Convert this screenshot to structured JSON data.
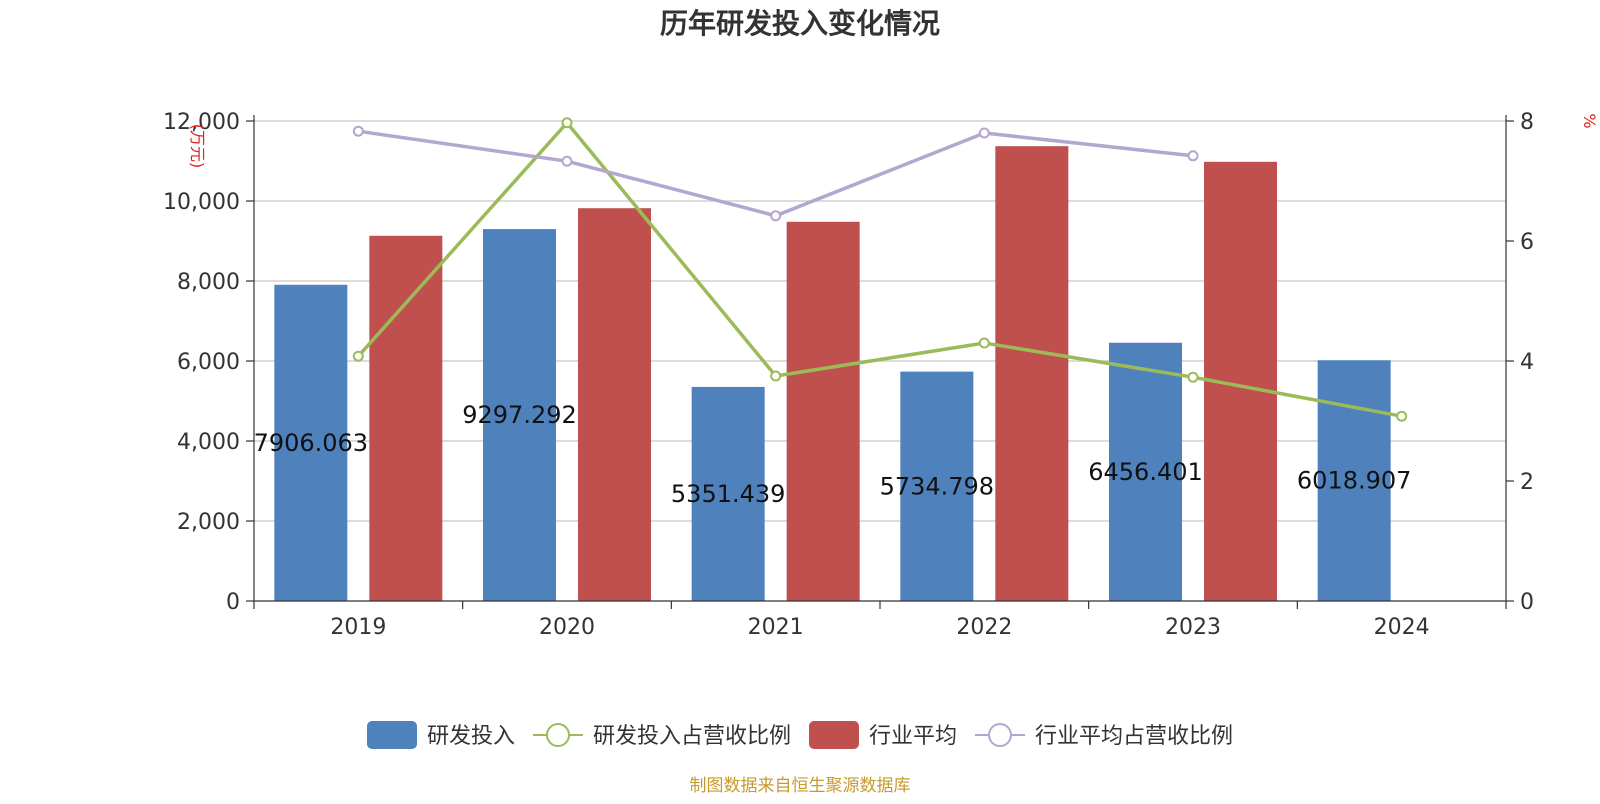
{
  "chart_data": {
    "type": "bar",
    "title": "历年研发投入变化情况",
    "categories": [
      "2019",
      "2020",
      "2021",
      "2022",
      "2023",
      "2024"
    ],
    "y_left": {
      "label": "(万元)",
      "range": [
        0,
        12000
      ],
      "ticks": [
        "0",
        "2,000",
        "4,000",
        "6,000",
        "8,000",
        "10,000",
        "12,000"
      ],
      "tick_values": [
        0,
        2000,
        4000,
        6000,
        8000,
        10000,
        12000
      ]
    },
    "y_right": {
      "label": "%",
      "range": [
        0,
        8
      ],
      "ticks": [
        "0",
        "2",
        "4",
        "6",
        "8"
      ],
      "tick_values": [
        0,
        2,
        4,
        6,
        8
      ]
    },
    "grid": true,
    "legend_position": "bottom",
    "series": [
      {
        "name": "研发投入",
        "kind": "bar",
        "axis": "left",
        "color": "#4f81bd",
        "values": [
          7906.063,
          9297.292,
          5351.439,
          5734.798,
          6456.401,
          6018.907
        ],
        "labels": [
          "7906.063",
          "9297.292",
          "5351.439",
          "5734.798",
          "6456.401",
          "6018.907"
        ]
      },
      {
        "name": "研发投入占营收比例",
        "kind": "line",
        "axis": "right",
        "color": "#9bbb59",
        "values": [
          4.08,
          7.97,
          3.75,
          4.3,
          3.73,
          3.08
        ]
      },
      {
        "name": "行业平均",
        "kind": "bar",
        "axis": "left",
        "color": "#c0504d",
        "values": [
          9130,
          9820,
          9480,
          11370,
          10980,
          null
        ]
      },
      {
        "name": "行业平均占营收比例",
        "kind": "line",
        "axis": "right",
        "color": "#b3a6d0",
        "values": [
          7.83,
          7.33,
          6.42,
          7.8,
          7.42,
          null
        ]
      }
    ],
    "source_note": "制图数据来自恒生聚源数据库"
  }
}
